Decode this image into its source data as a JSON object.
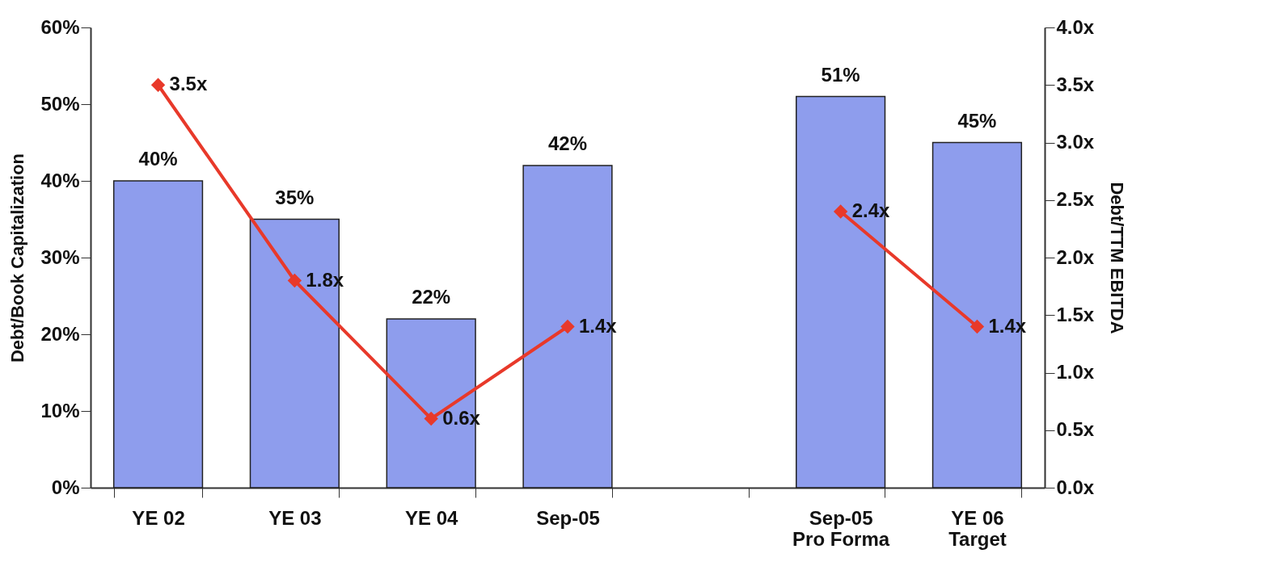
{
  "chart_data": {
    "type": "bar",
    "ylabel": "Debt/Book Capitalization",
    "y2label": "Debt/TTM EBITDA",
    "categories": [
      "YE 02",
      "YE 03",
      "YE 04",
      "Sep-05",
      null,
      "Sep-05\nPro Forma",
      "YE 06\nTarget"
    ],
    "series": [
      {
        "color": "#8e9ded",
        "values": [
          40,
          35,
          22,
          42,
          null,
          51,
          45
        ],
        "value_labels": [
          "40%",
          "35%",
          "22%",
          "42%",
          null,
          "51%",
          "45%"
        ]
      },
      {
        "type": "line",
        "axis": "y2",
        "color": "#e8392a",
        "values": [
          3.5,
          1.8,
          0.6,
          1.4,
          null,
          2.4,
          1.4
        ],
        "value_labels": [
          "3.5x",
          "1.8x",
          "0.6x",
          "1.4x",
          null,
          "2.4x",
          "1.4x"
        ]
      }
    ],
    "ylim": [
      0,
      60
    ],
    "yticks": [
      {
        "value": 0,
        "label": "0%"
      },
      {
        "value": 10,
        "label": "10%"
      },
      {
        "value": 20,
        "label": "20%"
      },
      {
        "value": 30,
        "label": "30%"
      },
      {
        "value": 40,
        "label": "40%"
      },
      {
        "value": 50,
        "label": "50%"
      },
      {
        "value": 60,
        "label": "60%"
      }
    ],
    "y2lim": [
      0,
      4
    ],
    "y2ticks": [
      {
        "value": 0,
        "label": "0.0x"
      },
      {
        "value": 0.5,
        "label": "0.5x"
      },
      {
        "value": 1,
        "label": "1.0x"
      },
      {
        "value": 1.5,
        "label": "1.5x"
      },
      {
        "value": 2,
        "label": "2.0x"
      },
      {
        "value": 2.5,
        "label": "2.5x"
      },
      {
        "value": 3,
        "label": "3.0x"
      },
      {
        "value": 3.5,
        "label": "3.5x"
      },
      {
        "value": 4,
        "label": "4.0x"
      }
    ],
    "marker": "diamond"
  }
}
